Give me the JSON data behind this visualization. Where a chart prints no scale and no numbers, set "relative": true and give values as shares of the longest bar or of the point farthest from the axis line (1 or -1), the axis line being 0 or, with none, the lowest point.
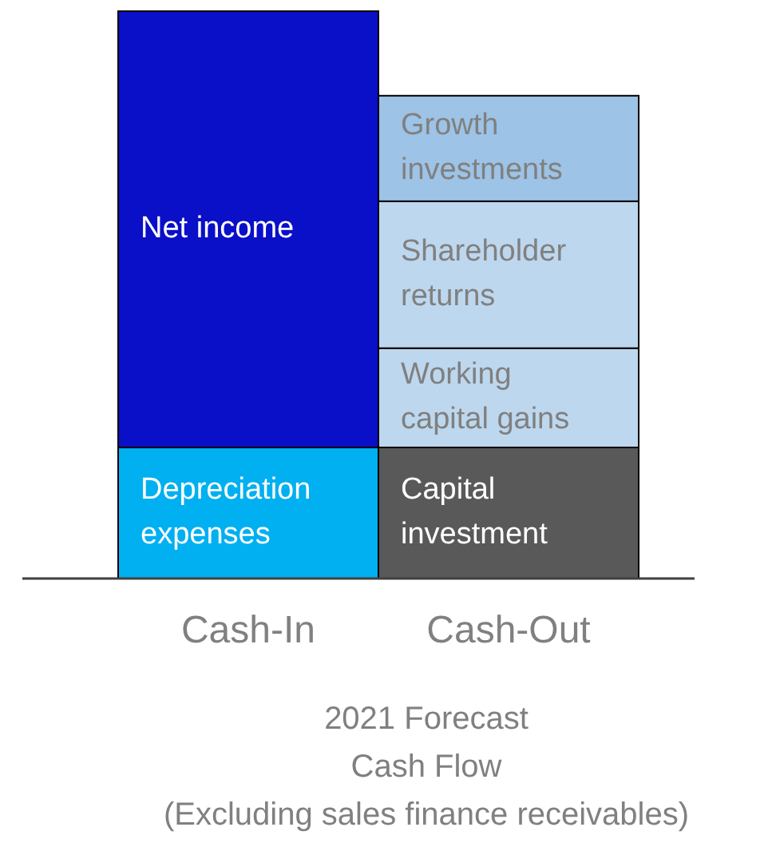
{
  "chart_data": {
    "type": "bar",
    "stacked": true,
    "relative": true,
    "title": "2021 Forecast\nCash Flow\n(Excluding sales finance receivables)",
    "categories": [
      "Cash-In",
      "Cash-Out"
    ],
    "series": [
      {
        "name": "Depreciation expenses",
        "color": "#00b0f0",
        "values": [
          0.231,
          null
        ]
      },
      {
        "name": "Net income",
        "color": "#0a0fc8",
        "values": [
          0.769,
          null
        ]
      },
      {
        "name": "Capital investment",
        "color": "#595959",
        "values": [
          null,
          0.231
        ]
      },
      {
        "name": "Working capital gains",
        "color": "#bdd7ee",
        "values": [
          null,
          0.175
        ]
      },
      {
        "name": "Shareholder returns",
        "color": "#bdd7ee",
        "values": [
          null,
          0.259
        ]
      },
      {
        "name": "Growth investments",
        "color": "#9dc3e6",
        "values": [
          null,
          0.186
        ]
      }
    ]
  }
}
